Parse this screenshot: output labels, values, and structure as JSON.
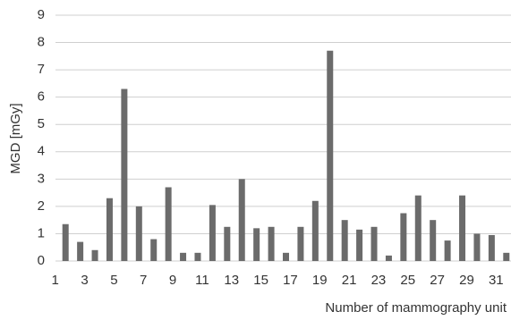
{
  "chart_data": {
    "type": "bar",
    "x_label": "Number of mammography unit",
    "y_label": "MGD [mGy]",
    "categories": [
      "1",
      null,
      "3",
      null,
      "5",
      null,
      "7",
      null,
      "9",
      null,
      "11",
      null,
      "13",
      null,
      "15",
      null,
      "17",
      null,
      "19",
      null,
      "21",
      null,
      "23",
      null,
      "25",
      null,
      "27",
      null,
      "29",
      null,
      "31"
    ],
    "values": [
      1.35,
      0.7,
      0.4,
      2.3,
      6.3,
      2.0,
      0.8,
      2.7,
      0.3,
      0.3,
      2.05,
      1.25,
      3.0,
      1.2,
      1.25,
      0.3,
      1.25,
      2.2,
      7.7,
      1.5,
      1.15,
      1.25,
      0.2,
      1.75,
      2.4,
      1.5,
      0.75,
      2.4,
      1.0,
      0.95,
      0.3
    ],
    "color": "#6b6b6b",
    "ylim": [
      0,
      9
    ],
    "yticks": [
      0,
      1,
      2,
      3,
      4,
      5,
      6,
      7,
      8,
      9
    ],
    "grid": true
  }
}
